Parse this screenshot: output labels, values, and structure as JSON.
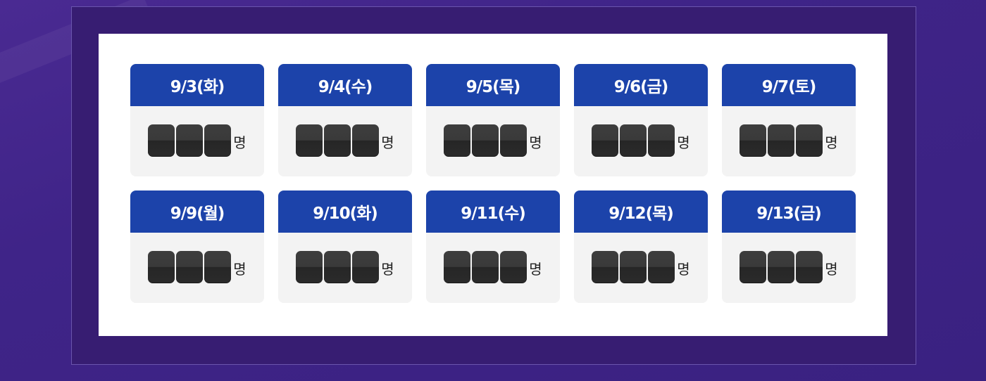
{
  "unit_label": "명",
  "days": [
    {
      "date": "9/3(화)"
    },
    {
      "date": "9/4(수)"
    },
    {
      "date": "9/5(목)"
    },
    {
      "date": "9/6(금)"
    },
    {
      "date": "9/7(토)"
    },
    {
      "date": "9/9(월)"
    },
    {
      "date": "9/10(화)"
    },
    {
      "date": "9/11(수)"
    },
    {
      "date": "9/12(목)"
    },
    {
      "date": "9/13(금)"
    }
  ],
  "colors": {
    "background": "#3f2488",
    "frame": "#371d72",
    "header": "#1c43aa",
    "card_body": "#f3f3f3",
    "digit_tile": "#2f2f2f"
  }
}
